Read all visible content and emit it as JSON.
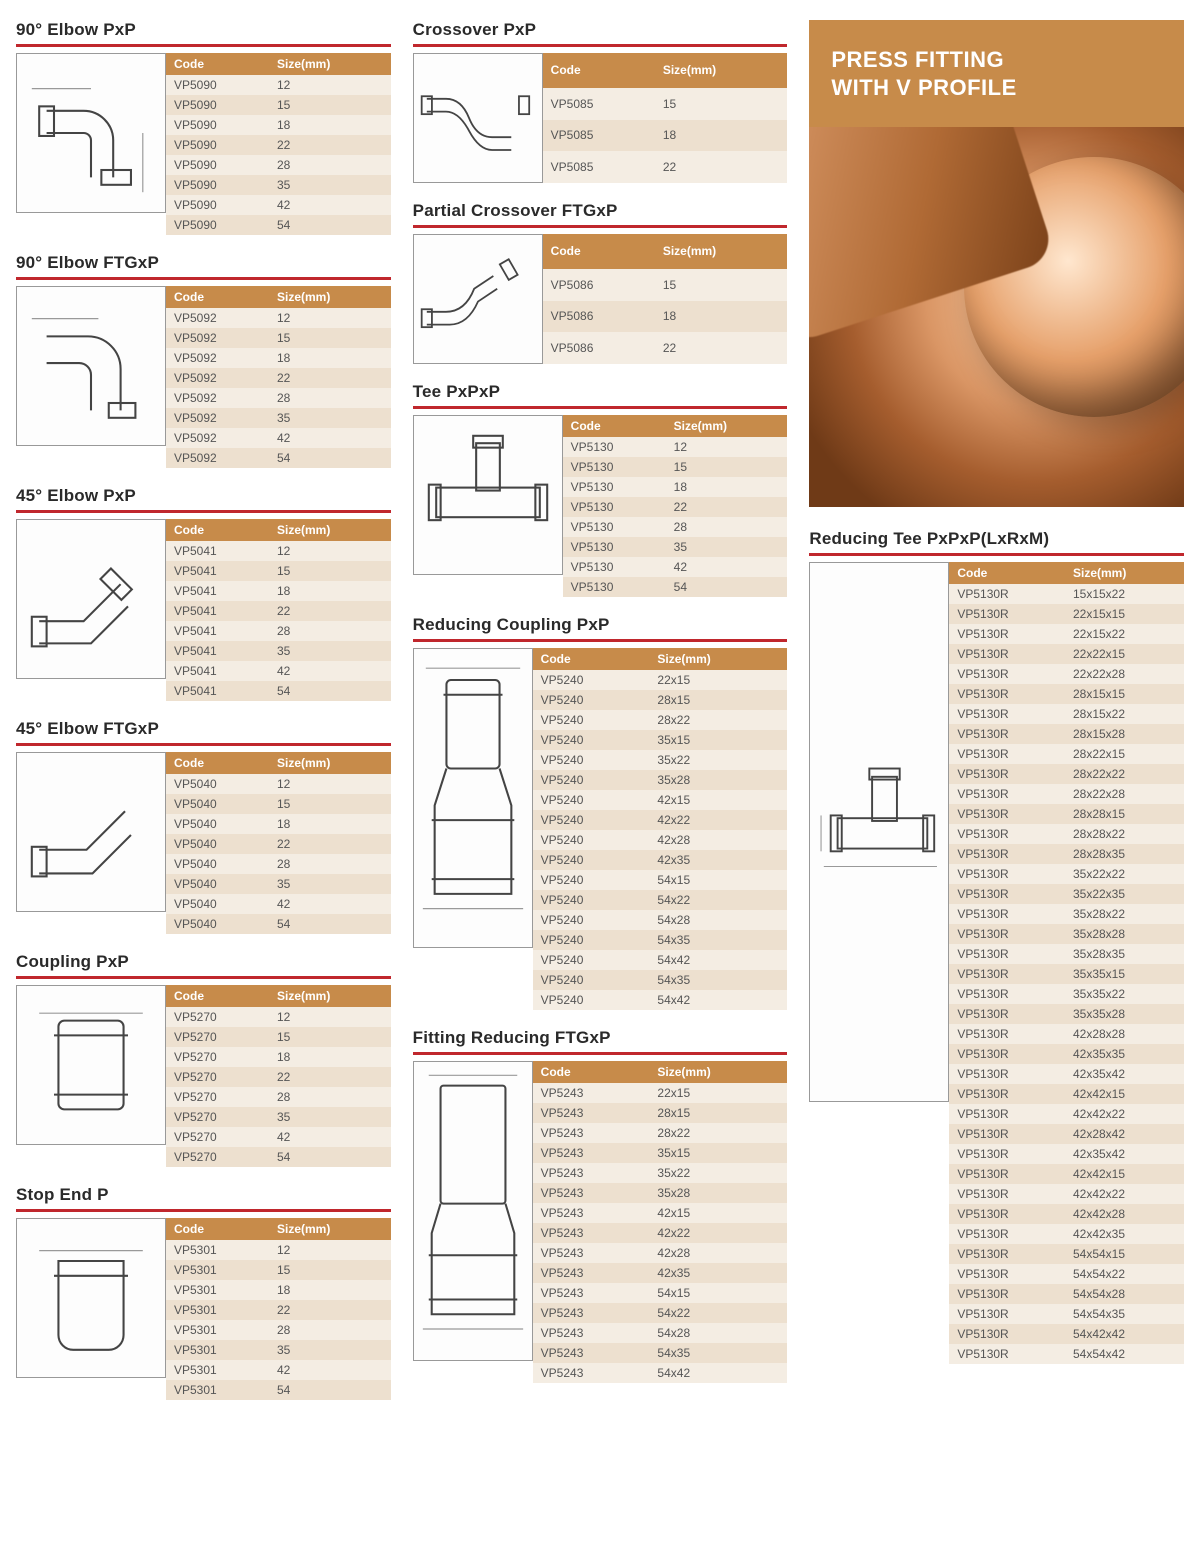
{
  "hero": {
    "line1": "PRESS FITTING",
    "line2": "WITH V PROFILE"
  },
  "header_code": "Code",
  "header_size": "Size(mm)",
  "colors": {
    "accent_red": "#c0272d",
    "accent_tan": "#c78b4a",
    "row_light": "#f4ede3",
    "row_dark": "#ede0cf"
  },
  "sections": {
    "elbow90pxp": {
      "title": "90° Elbow PxP",
      "rows": [
        [
          "VP5090",
          "12"
        ],
        [
          "VP5090",
          "15"
        ],
        [
          "VP5090",
          "18"
        ],
        [
          "VP5090",
          "22"
        ],
        [
          "VP5090",
          "28"
        ],
        [
          "VP5090",
          "35"
        ],
        [
          "VP5090",
          "42"
        ],
        [
          "VP5090",
          "54"
        ]
      ]
    },
    "elbow90ftgxp": {
      "title": "90° Elbow FTGxP",
      "rows": [
        [
          "VP5092",
          "12"
        ],
        [
          "VP5092",
          "15"
        ],
        [
          "VP5092",
          "18"
        ],
        [
          "VP5092",
          "22"
        ],
        [
          "VP5092",
          "28"
        ],
        [
          "VP5092",
          "35"
        ],
        [
          "VP5092",
          "42"
        ],
        [
          "VP5092",
          "54"
        ]
      ]
    },
    "elbow45pxp": {
      "title": "45° Elbow PxP",
      "rows": [
        [
          "VP5041",
          "12"
        ],
        [
          "VP5041",
          "15"
        ],
        [
          "VP5041",
          "18"
        ],
        [
          "VP5041",
          "22"
        ],
        [
          "VP5041",
          "28"
        ],
        [
          "VP5041",
          "35"
        ],
        [
          "VP5041",
          "42"
        ],
        [
          "VP5041",
          "54"
        ]
      ]
    },
    "elbow45ftgxp": {
      "title": "45° Elbow FTGxP",
      "rows": [
        [
          "VP5040",
          "12"
        ],
        [
          "VP5040",
          "15"
        ],
        [
          "VP5040",
          "18"
        ],
        [
          "VP5040",
          "22"
        ],
        [
          "VP5040",
          "28"
        ],
        [
          "VP5040",
          "35"
        ],
        [
          "VP5040",
          "42"
        ],
        [
          "VP5040",
          "54"
        ]
      ]
    },
    "couplingpxp": {
      "title": "Coupling PxP",
      "rows": [
        [
          "VP5270",
          "12"
        ],
        [
          "VP5270",
          "15"
        ],
        [
          "VP5270",
          "18"
        ],
        [
          "VP5270",
          "22"
        ],
        [
          "VP5270",
          "28"
        ],
        [
          "VP5270",
          "35"
        ],
        [
          "VP5270",
          "42"
        ],
        [
          "VP5270",
          "54"
        ]
      ]
    },
    "stopendp": {
      "title": "Stop End P",
      "rows": [
        [
          "VP5301",
          "12"
        ],
        [
          "VP5301",
          "15"
        ],
        [
          "VP5301",
          "18"
        ],
        [
          "VP5301",
          "22"
        ],
        [
          "VP5301",
          "28"
        ],
        [
          "VP5301",
          "35"
        ],
        [
          "VP5301",
          "42"
        ],
        [
          "VP5301",
          "54"
        ]
      ]
    },
    "crossoverpxp": {
      "title": "Crossover PxP",
      "rows": [
        [
          "VP5085",
          "15"
        ],
        [
          "VP5085",
          "18"
        ],
        [
          "VP5085",
          "22"
        ]
      ]
    },
    "partialcrossover": {
      "title": "Partial Crossover FTGxP",
      "rows": [
        [
          "VP5086",
          "15"
        ],
        [
          "VP5086",
          "18"
        ],
        [
          "VP5086",
          "22"
        ]
      ]
    },
    "teepxpxp": {
      "title": "Tee PxPxP",
      "rows": [
        [
          "VP5130",
          "12"
        ],
        [
          "VP5130",
          "15"
        ],
        [
          "VP5130",
          "18"
        ],
        [
          "VP5130",
          "22"
        ],
        [
          "VP5130",
          "28"
        ],
        [
          "VP5130",
          "35"
        ],
        [
          "VP5130",
          "42"
        ],
        [
          "VP5130",
          "54"
        ]
      ]
    },
    "reducingcoupling": {
      "title": "Reducing Coupling PxP",
      "rows": [
        [
          "VP5240",
          "22x15"
        ],
        [
          "VP5240",
          "28x15"
        ],
        [
          "VP5240",
          "28x22"
        ],
        [
          "VP5240",
          "35x15"
        ],
        [
          "VP5240",
          "35x22"
        ],
        [
          "VP5240",
          "35x28"
        ],
        [
          "VP5240",
          "42x15"
        ],
        [
          "VP5240",
          "42x22"
        ],
        [
          "VP5240",
          "42x28"
        ],
        [
          "VP5240",
          "42x35"
        ],
        [
          "VP5240",
          "54x15"
        ],
        [
          "VP5240",
          "54x22"
        ],
        [
          "VP5240",
          "54x28"
        ],
        [
          "VP5240",
          "54x35"
        ],
        [
          "VP5240",
          "54x42"
        ],
        [
          "VP5240",
          "54x35"
        ],
        [
          "VP5240",
          "54x42"
        ]
      ]
    },
    "fittingreducing": {
      "title": "Fitting Reducing FTGxP",
      "rows": [
        [
          "VP5243",
          "22x15"
        ],
        [
          "VP5243",
          "28x15"
        ],
        [
          "VP5243",
          "28x22"
        ],
        [
          "VP5243",
          "35x15"
        ],
        [
          "VP5243",
          "35x22"
        ],
        [
          "VP5243",
          "35x28"
        ],
        [
          "VP5243",
          "42x15"
        ],
        [
          "VP5243",
          "42x22"
        ],
        [
          "VP5243",
          "42x28"
        ],
        [
          "VP5243",
          "42x35"
        ],
        [
          "VP5243",
          "54x15"
        ],
        [
          "VP5243",
          "54x22"
        ],
        [
          "VP5243",
          "54x28"
        ],
        [
          "VP5243",
          "54x35"
        ],
        [
          "VP5243",
          "54x42"
        ]
      ]
    },
    "reducingtee": {
      "title": "Reducing Tee PxPxP(LxRxM)",
      "rows": [
        [
          "VP5130R",
          "15x15x22"
        ],
        [
          "VP5130R",
          "22x15x15"
        ],
        [
          "VP5130R",
          "22x15x22"
        ],
        [
          "VP5130R",
          "22x22x15"
        ],
        [
          "VP5130R",
          "22x22x28"
        ],
        [
          "VP5130R",
          "28x15x15"
        ],
        [
          "VP5130R",
          "28x15x22"
        ],
        [
          "VP5130R",
          "28x15x28"
        ],
        [
          "VP5130R",
          "28x22x15"
        ],
        [
          "VP5130R",
          "28x22x22"
        ],
        [
          "VP5130R",
          "28x22x28"
        ],
        [
          "VP5130R",
          "28x28x15"
        ],
        [
          "VP5130R",
          "28x28x22"
        ],
        [
          "VP5130R",
          "28x28x35"
        ],
        [
          "VP5130R",
          "35x22x22"
        ],
        [
          "VP5130R",
          "35x22x35"
        ],
        [
          "VP5130R",
          "35x28x22"
        ],
        [
          "VP5130R",
          "35x28x28"
        ],
        [
          "VP5130R",
          "35x28x35"
        ],
        [
          "VP5130R",
          "35x35x15"
        ],
        [
          "VP5130R",
          "35x35x22"
        ],
        [
          "VP5130R",
          "35x35x28"
        ],
        [
          "VP5130R",
          "42x28x28"
        ],
        [
          "VP5130R",
          "42x35x35"
        ],
        [
          "VP5130R",
          "42x35x42"
        ],
        [
          "VP5130R",
          "42x42x15"
        ],
        [
          "VP5130R",
          "42x42x22"
        ],
        [
          "VP5130R",
          "42x28x42"
        ],
        [
          "VP5130R",
          "42x35x42"
        ],
        [
          "VP5130R",
          "42x42x15"
        ],
        [
          "VP5130R",
          "42x42x22"
        ],
        [
          "VP5130R",
          "42x42x28"
        ],
        [
          "VP5130R",
          "42x42x35"
        ],
        [
          "VP5130R",
          "54x54x15"
        ],
        [
          "VP5130R",
          "54x54x22"
        ],
        [
          "VP5130R",
          "54x54x28"
        ],
        [
          "VP5130R",
          "54x54x35"
        ],
        [
          "VP5130R",
          "54x42x42"
        ],
        [
          "VP5130R",
          "54x54x42"
        ]
      ]
    }
  }
}
